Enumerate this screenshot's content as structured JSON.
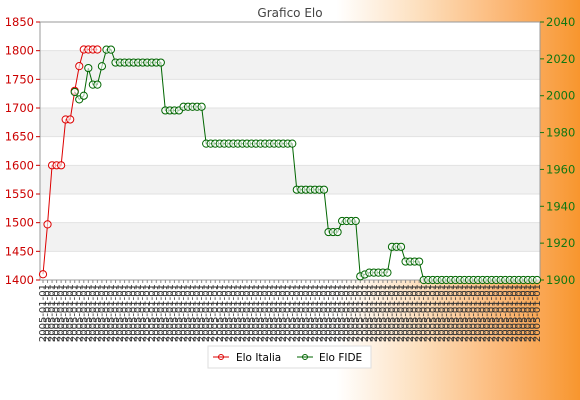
{
  "chart_data": {
    "type": "line",
    "title": "Grafico Elo",
    "y_left": {
      "ylim": [
        1400,
        1850
      ],
      "ticks": [
        1400,
        1450,
        1500,
        1550,
        1600,
        1650,
        1700,
        1750,
        1800,
        1850
      ],
      "color": "#cc0000"
    },
    "y_right": {
      "ylim": [
        1900,
        2040
      ],
      "ticks": [
        1900,
        1920,
        1940,
        1960,
        1980,
        2000,
        2020,
        2040
      ],
      "color": "#117711"
    },
    "x_tick_text": "2005-01-01",
    "x_count": 110,
    "grid": true,
    "legend_position": "bottom-center",
    "series": [
      {
        "name": "Elo Italia",
        "axis": "left",
        "color": "#dd0000",
        "x": [
          0,
          1,
          2,
          3,
          4,
          5,
          6,
          7,
          8,
          9,
          10,
          11,
          12
        ],
        "values": [
          1410,
          1497,
          1600,
          1600,
          1600,
          1680,
          1680,
          1730,
          1773,
          1802,
          1802,
          1802,
          1802
        ]
      },
      {
        "name": "Elo FIDE",
        "axis": "right",
        "color": "#006600",
        "x": [
          7,
          8,
          9,
          10,
          11,
          12,
          13,
          14,
          15,
          16,
          17,
          18,
          19,
          20,
          21,
          22,
          23,
          24,
          25,
          26,
          27,
          28,
          29,
          30,
          31,
          32,
          33,
          34,
          35,
          36,
          37,
          38,
          39,
          40,
          41,
          42,
          43,
          44,
          45,
          46,
          47,
          48,
          49,
          50,
          51,
          52,
          53,
          54,
          55,
          56,
          57,
          58,
          59,
          60,
          61,
          62,
          63,
          64,
          65,
          66,
          67,
          68,
          69,
          70,
          71,
          72,
          73,
          74,
          75,
          76,
          77,
          78,
          79,
          80,
          81,
          82,
          83,
          84,
          85,
          86,
          87,
          88,
          89,
          90,
          91,
          92,
          93,
          94,
          95,
          96,
          97,
          98,
          99,
          100,
          101,
          102,
          103,
          104,
          105,
          106,
          107,
          108,
          109
        ],
        "values": [
          2002,
          1998,
          2000,
          2015,
          2006,
          2006,
          2016,
          2025,
          2025,
          2018,
          2018,
          2018,
          2018,
          2018,
          2018,
          2018,
          2018,
          2018,
          2018,
          2018,
          1992,
          1992,
          1992,
          1992,
          1994,
          1994,
          1994,
          1994,
          1994,
          1974,
          1974,
          1974,
          1974,
          1974,
          1974,
          1974,
          1974,
          1974,
          1974,
          1974,
          1974,
          1974,
          1974,
          1974,
          1974,
          1974,
          1974,
          1974,
          1974,
          1949,
          1949,
          1949,
          1949,
          1949,
          1949,
          1949,
          1926,
          1926,
          1926,
          1932,
          1932,
          1932,
          1932,
          1902,
          1903,
          1904,
          1904,
          1904,
          1904,
          1904,
          1918,
          1918,
          1918,
          1910,
          1910,
          1910,
          1910,
          1900,
          1900,
          1900,
          1900,
          1900,
          1900,
          1900,
          1900,
          1900,
          1900,
          1900,
          1900,
          1900,
          1900,
          1900,
          1900,
          1900,
          1900,
          1900,
          1900,
          1900,
          1900,
          1900,
          1900,
          1900,
          1900
        ]
      }
    ]
  }
}
